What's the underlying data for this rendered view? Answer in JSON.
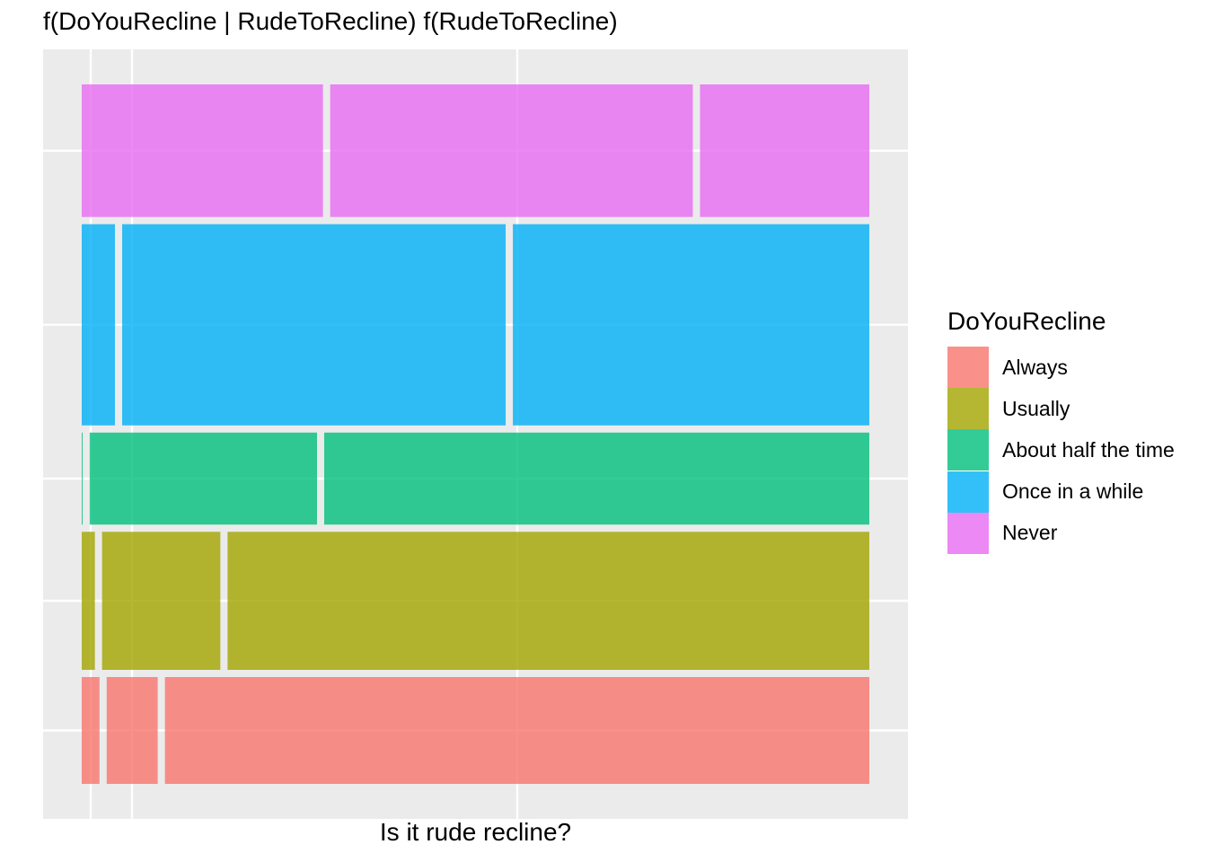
{
  "chart_data": {
    "type": "mosaic",
    "title": "f(DoYouRecline | RudeToRecline) f(RudeToRecline)",
    "xlabel": "Is it rude recline?",
    "ylabel": "",
    "grid": true,
    "legend": {
      "title": "DoYouRecline",
      "position": "right",
      "entries": [
        {
          "label": "Always",
          "color": "#F8766D"
        },
        {
          "label": "Usually",
          "color": "#A3A500"
        },
        {
          "label": "About half the time",
          "color": "#00BF7D"
        },
        {
          "label": "Once in a while",
          "color": "#00B0F6"
        },
        {
          "label": "Never",
          "color": "#E76BF3"
        }
      ]
    },
    "rows": [
      {
        "category": "Always",
        "color": "#F8766D",
        "height_share": 0.137,
        "segments": [
          0.023,
          0.066,
          0.911
        ]
      },
      {
        "category": "Usually",
        "color": "#A3A500",
        "height_share": 0.177,
        "segments": [
          0.017,
          0.153,
          0.83
        ]
      },
      {
        "category": "About half the time",
        "color": "#00BF7D",
        "height_share": 0.118,
        "segments": [
          0.001,
          0.294,
          0.705
        ]
      },
      {
        "category": "Once in a while",
        "color": "#00B0F6",
        "height_share": 0.258,
        "segments": [
          0.043,
          0.496,
          0.461
        ]
      },
      {
        "category": "Never",
        "color": "#E76BF3",
        "height_share": 0.17,
        "segments": [
          0.312,
          0.469,
          0.219
        ]
      }
    ]
  }
}
